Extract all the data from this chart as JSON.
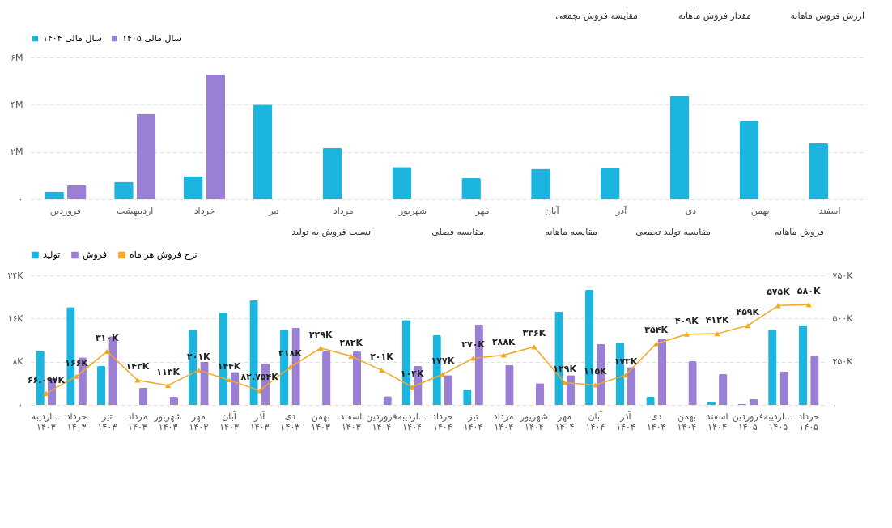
{
  "chart_data": [
    {
      "type": "bar",
      "annotations": [
        "ارزش فروش ماهانه",
        "مقدار فروش ماهانه",
        "مقایسه فروش تجمعی"
      ],
      "categories": [
        "فروردین",
        "اردیبهشت",
        "خرداد",
        "تیر",
        "مرداد",
        "شهریور",
        "مهر",
        "آبان",
        "آذر",
        "دی",
        "بهمن",
        "اسفند"
      ],
      "series": [
        {
          "name": "سال مالی ۱۴۰۴",
          "color": "#1cb5e0",
          "values": [
            330000,
            740000,
            980000,
            4000000,
            2170000,
            1360000,
            890000,
            1290000,
            1320000,
            4380000,
            3300000,
            2370000
          ]
        },
        {
          "name": "سال مالی ۱۴۰۵",
          "color": "#9b7fd4",
          "values": [
            600000,
            3620000,
            5290000,
            null,
            null,
            null,
            null,
            null,
            null,
            null,
            null,
            null
          ]
        }
      ],
      "ylim": [
        0,
        6000000
      ],
      "yticks": [
        {
          "value": 0,
          "label": "۰"
        },
        {
          "value": 2000000,
          "label": "۲M"
        },
        {
          "value": 4000000,
          "label": "۴M"
        },
        {
          "value": 6000000,
          "label": "۶M"
        }
      ],
      "grid": "y",
      "legend": "top left"
    },
    {
      "type": "bar",
      "annotations": [
        "فروش ماهانه",
        "مقایسه تولید تجمعی",
        "مقایسه ماهانه",
        "مقایسه فصلی",
        "نسبت فروش به تولید"
      ],
      "categories": [
        "اردیبه...\n۱۴۰۳",
        "خرداد\n۱۴۰۳",
        "تیر\n۱۴۰۳",
        "مرداد\n۱۴۰۳",
        "شهریور\n۱۴۰۳",
        "مهر\n۱۴۰۳",
        "آبان\n۱۴۰۳",
        "آذر\n۱۴۰۳",
        "دی\n۱۴۰۳",
        "بهمن\n۱۴۰۳",
        "اسفند\n۱۴۰۳",
        "فروردین\n۱۴۰۴",
        "اردیبه...\n۱۴۰۴",
        "خرداد\n۱۴۰۴",
        "تیر\n۱۴۰۴",
        "مرداد\n۱۴۰۴",
        "شهریور\n۱۴۰۴",
        "مهر\n۱۴۰۴",
        "آبان\n۱۴۰۴",
        "آذر\n۱۴۰۴",
        "دی\n۱۴۰۴",
        "بهمن\n۱۴۰۴",
        "اسفند\n۱۴۰۴",
        "فروردین\n۱۴۰۵",
        "اردیبه...\n۱۴۰۵",
        "خرداد\n۱۴۰۵"
      ],
      "series": [
        {
          "name": "تولید",
          "color": "#1cb5e0",
          "values": [
            10100,
            18100,
            7200,
            null,
            null,
            13900,
            17100,
            19400,
            13900,
            null,
            null,
            null,
            15700,
            12900,
            2900,
            null,
            null,
            17300,
            21300,
            11600,
            1500,
            null,
            600,
            200,
            13900,
            14700
          ]
        },
        {
          "name": "فروش",
          "color": "#9b7fd4",
          "values": [
            5000,
            8800,
            12700,
            3200,
            1500,
            8000,
            6100,
            7700,
            14300,
            9900,
            9900,
            1600,
            7200,
            5500,
            14900,
            7400,
            4000,
            5500,
            11300,
            7000,
            12300,
            8100,
            5700,
            1100,
            6200,
            9100
          ]
        },
        {
          "name": "نرخ فروش هر ماه",
          "color": "#f5a623",
          "type": "line",
          "axis": "y2",
          "marker": "triangle",
          "values": [
            66097,
            166000,
            310000,
            143000,
            113000,
            201000,
            144000,
            82754,
            218000,
            329000,
            282000,
            201000,
            104000,
            177000,
            270000,
            288000,
            336000,
            129000,
            115000,
            173000,
            354000,
            409000,
            412000,
            459000,
            575000,
            580000
          ],
          "value_labels": [
            "۶۶.۰۹۷K",
            "۱۶۶K",
            "۳۱۰K",
            "۱۴۳K",
            "۱۱۳K",
            "۲۰۱K",
            "۱۴۴K",
            "۸۲.۷۵۴K",
            "۲۱۸K",
            "۳۲۹K",
            "۲۸۲K",
            "۲۰۱K",
            "۱۰۴K",
            "۱۷۷K",
            "۲۷۰K",
            "۲۸۸K",
            "۳۳۶K",
            "۱۲۹K",
            "۱۱۵K",
            "۱۷۳K",
            "۳۵۴K",
            "۴۰۹K",
            "۴۱۲K",
            "۴۵۹K",
            "۵۷۵K",
            "۵۸۰K"
          ]
        }
      ],
      "ylim": [
        0,
        24000
      ],
      "yticks": [
        {
          "value": 0,
          "label": "۰"
        },
        {
          "value": 8000,
          "label": "۸K"
        },
        {
          "value": 16000,
          "label": "۱۶K"
        },
        {
          "value": 24000,
          "label": "۲۴K"
        }
      ],
      "y2lim": [
        0,
        750000
      ],
      "y2ticks": [
        {
          "value": 0,
          "label": "۰"
        },
        {
          "value": 250000,
          "label": "۲۵۰K"
        },
        {
          "value": 500000,
          "label": "۵۰۰K"
        },
        {
          "value": 750000,
          "label": "۷۵۰K"
        }
      ],
      "grid": "y",
      "legend": "top left"
    }
  ]
}
